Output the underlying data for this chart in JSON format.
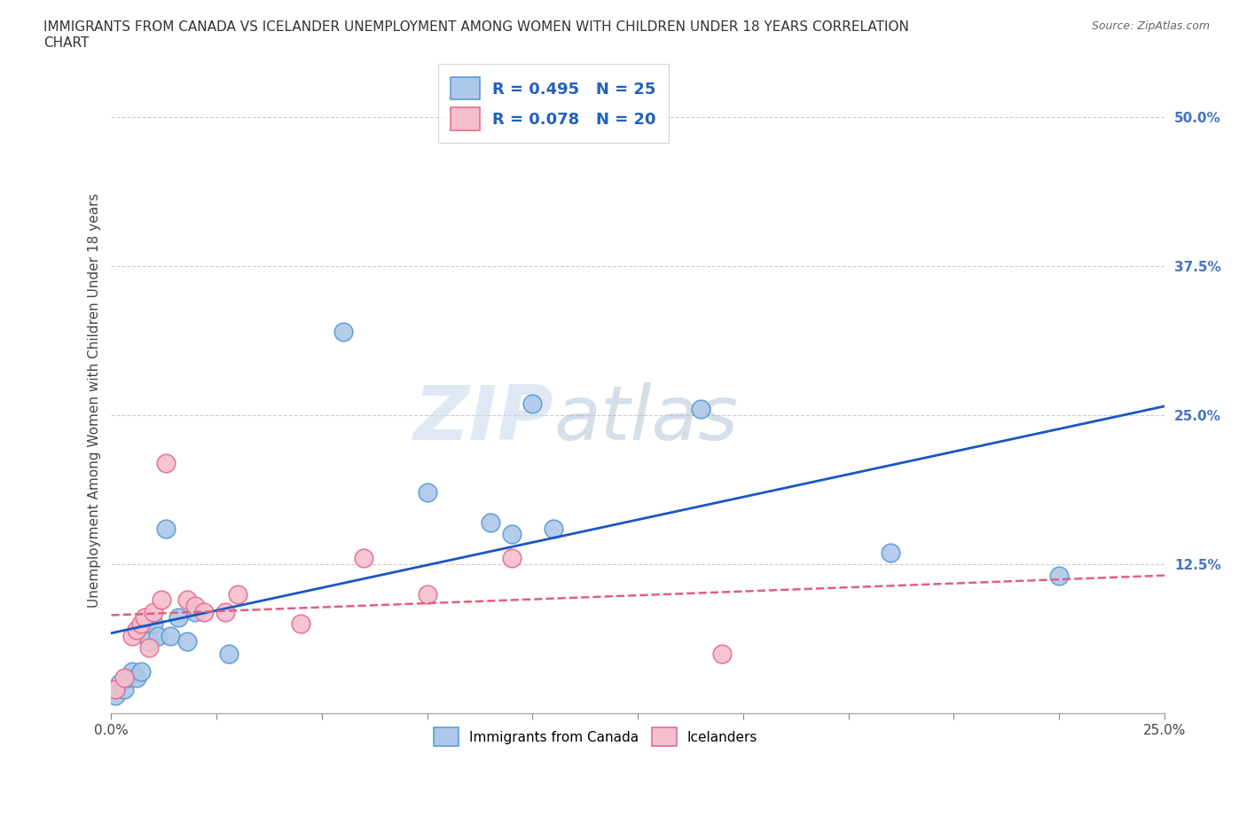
{
  "title": "IMMIGRANTS FROM CANADA VS ICELANDER UNEMPLOYMENT AMONG WOMEN WITH CHILDREN UNDER 18 YEARS CORRELATION\nCHART",
  "source": "Source: ZipAtlas.com",
  "ylabel": "Unemployment Among Women with Children Under 18 years",
  "xlim": [
    0.0,
    0.25
  ],
  "ylim": [
    0.0,
    0.525
  ],
  "xticks": [
    0.0,
    0.025,
    0.05,
    0.075,
    0.1,
    0.125,
    0.15,
    0.175,
    0.2,
    0.225,
    0.25
  ],
  "xticklabels": [
    "0.0%",
    "",
    "",
    "",
    "",
    "",
    "",
    "",
    "",
    "",
    "25.0%"
  ],
  "yticks": [
    0.0,
    0.125,
    0.25,
    0.375,
    0.5
  ],
  "yticklabels": [
    "",
    "12.5%",
    "25.0%",
    "37.5%",
    "50.0%"
  ],
  "canada_x": [
    0.001,
    0.002,
    0.003,
    0.004,
    0.005,
    0.006,
    0.007,
    0.009,
    0.01,
    0.011,
    0.013,
    0.014,
    0.016,
    0.018,
    0.02,
    0.028,
    0.055,
    0.075,
    0.09,
    0.095,
    0.1,
    0.105,
    0.14,
    0.185,
    0.225
  ],
  "canada_y": [
    0.015,
    0.025,
    0.02,
    0.03,
    0.035,
    0.03,
    0.035,
    0.06,
    0.075,
    0.065,
    0.155,
    0.065,
    0.08,
    0.06,
    0.085,
    0.05,
    0.32,
    0.185,
    0.16,
    0.15,
    0.26,
    0.155,
    0.255,
    0.135,
    0.115
  ],
  "iceland_x": [
    0.001,
    0.003,
    0.005,
    0.006,
    0.007,
    0.008,
    0.009,
    0.01,
    0.012,
    0.013,
    0.018,
    0.02,
    0.022,
    0.027,
    0.03,
    0.045,
    0.06,
    0.075,
    0.095,
    0.145
  ],
  "iceland_y": [
    0.02,
    0.03,
    0.065,
    0.07,
    0.075,
    0.08,
    0.055,
    0.085,
    0.095,
    0.21,
    0.095,
    0.09,
    0.085,
    0.085,
    0.1,
    0.075,
    0.13,
    0.1,
    0.13,
    0.05
  ],
  "canada_color": "#adc8e8",
  "canada_edge_color": "#5b9bd5",
  "iceland_color": "#f5bfcc",
  "iceland_edge_color": "#e07090",
  "trend_canada_color": "#1a56c4",
  "trend_iceland_color": "#e06080",
  "R_canada": 0.495,
  "N_canada": 25,
  "R_iceland": 0.078,
  "N_iceland": 20,
  "watermark_zip": "ZIP",
  "watermark_atlas": "atlas",
  "background_color": "#ffffff",
  "grid_color": "#cccccc"
}
